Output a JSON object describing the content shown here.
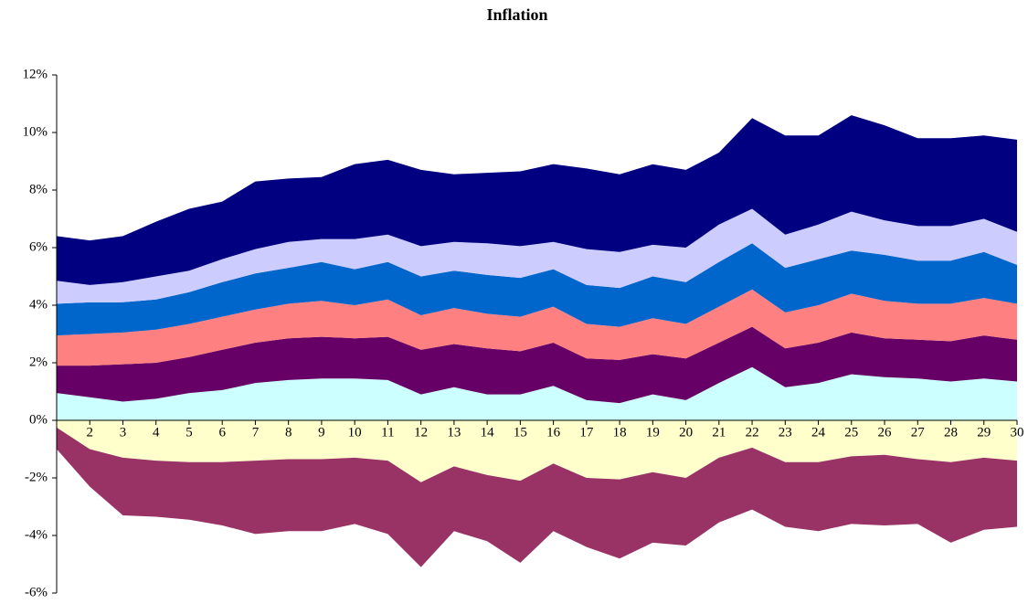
{
  "chart_data": {
    "type": "stacked_area",
    "title": "Inflation",
    "categories": [
      null,
      "2",
      "3",
      "4",
      "5",
      "6",
      "7",
      "8",
      "9",
      "10",
      "11",
      "12",
      "13",
      "14",
      "15",
      "16",
      "17",
      "18",
      "19",
      "20",
      "21",
      "22",
      "23",
      "24",
      "25",
      "26",
      "27",
      "28",
      "29",
      "30"
    ],
    "series": [
      {
        "color": "#ccffff",
        "values": [
          0.95,
          0.8,
          0.65,
          0.75,
          0.95,
          1.05,
          1.3,
          1.4,
          1.45,
          1.45,
          1.4,
          0.9,
          1.15,
          0.9,
          0.9,
          1.2,
          0.7,
          0.6,
          0.9,
          0.7,
          1.3,
          1.85,
          1.15,
          1.3,
          1.6,
          1.5,
          1.45,
          1.35,
          1.45,
          1.35
        ]
      },
      {
        "color": "#660066",
        "values": [
          0.95,
          1.1,
          1.3,
          1.25,
          1.25,
          1.4,
          1.4,
          1.45,
          1.45,
          1.4,
          1.5,
          1.55,
          1.5,
          1.6,
          1.5,
          1.5,
          1.45,
          1.5,
          1.4,
          1.45,
          1.4,
          1.4,
          1.35,
          1.4,
          1.45,
          1.35,
          1.35,
          1.4,
          1.5,
          1.45
        ]
      },
      {
        "color": "#ff8080",
        "values": [
          1.05,
          1.1,
          1.1,
          1.15,
          1.15,
          1.15,
          1.15,
          1.2,
          1.25,
          1.15,
          1.3,
          1.2,
          1.25,
          1.2,
          1.2,
          1.25,
          1.2,
          1.15,
          1.25,
          1.2,
          1.25,
          1.3,
          1.25,
          1.3,
          1.35,
          1.3,
          1.25,
          1.3,
          1.3,
          1.25
        ]
      },
      {
        "color": "#0066cc",
        "values": [
          1.1,
          1.1,
          1.05,
          1.05,
          1.1,
          1.2,
          1.25,
          1.25,
          1.35,
          1.25,
          1.3,
          1.35,
          1.3,
          1.35,
          1.35,
          1.3,
          1.35,
          1.35,
          1.45,
          1.45,
          1.55,
          1.6,
          1.55,
          1.6,
          1.5,
          1.6,
          1.5,
          1.5,
          1.6,
          1.35
        ]
      },
      {
        "color": "#ccccff",
        "values": [
          0.8,
          0.6,
          0.7,
          0.8,
          0.75,
          0.8,
          0.85,
          0.9,
          0.8,
          1.05,
          0.95,
          1.05,
          1.0,
          1.1,
          1.1,
          0.95,
          1.25,
          1.25,
          1.1,
          1.2,
          1.3,
          1.2,
          1.15,
          1.2,
          1.35,
          1.2,
          1.2,
          1.2,
          1.15,
          1.15
        ]
      },
      {
        "color": "#000080",
        "values": [
          1.55,
          1.55,
          1.6,
          1.9,
          2.15,
          2.0,
          2.35,
          2.2,
          2.15,
          2.6,
          2.6,
          2.65,
          2.35,
          2.45,
          2.6,
          2.7,
          2.8,
          2.7,
          2.8,
          2.7,
          2.5,
          3.15,
          3.45,
          3.1,
          3.35,
          3.3,
          3.05,
          3.05,
          2.9,
          3.2
        ]
      },
      {
        "color": "#ffffcc",
        "values": [
          -0.25,
          -1.0,
          -1.3,
          -1.4,
          -1.45,
          -1.45,
          -1.4,
          -1.35,
          -1.35,
          -1.3,
          -1.4,
          -2.15,
          -1.6,
          -1.9,
          -2.1,
          -1.5,
          -2.0,
          -2.05,
          -1.8,
          -2.0,
          -1.3,
          -0.95,
          -1.45,
          -1.45,
          -1.25,
          -1.2,
          -1.35,
          -1.45,
          -1.3,
          -1.4
        ]
      },
      {
        "color": "#993366",
        "values": [
          -0.75,
          -1.3,
          -2.0,
          -1.95,
          -2.0,
          -2.2,
          -2.55,
          -2.5,
          -2.5,
          -2.3,
          -2.55,
          -2.95,
          -2.25,
          -2.3,
          -2.85,
          -2.35,
          -2.4,
          -2.75,
          -2.45,
          -2.35,
          -2.25,
          -2.15,
          -2.25,
          -2.4,
          -2.35,
          -2.45,
          -2.25,
          -2.8,
          -2.5,
          -2.3
        ]
      }
    ],
    "ylim": [
      -6,
      12
    ],
    "yticks": [
      {
        "value": -6,
        "label": "-6%"
      },
      {
        "value": -4,
        "label": "-4%"
      },
      {
        "value": -2,
        "label": "-2%"
      },
      {
        "value": 0,
        "label": "0%"
      },
      {
        "value": 2,
        "label": "2%"
      },
      {
        "value": 4,
        "label": "4%"
      },
      {
        "value": 6,
        "label": "6%"
      },
      {
        "value": 8,
        "label": "8%"
      },
      {
        "value": 10,
        "label": "10%"
      },
      {
        "value": 12,
        "label": "12%"
      }
    ]
  }
}
